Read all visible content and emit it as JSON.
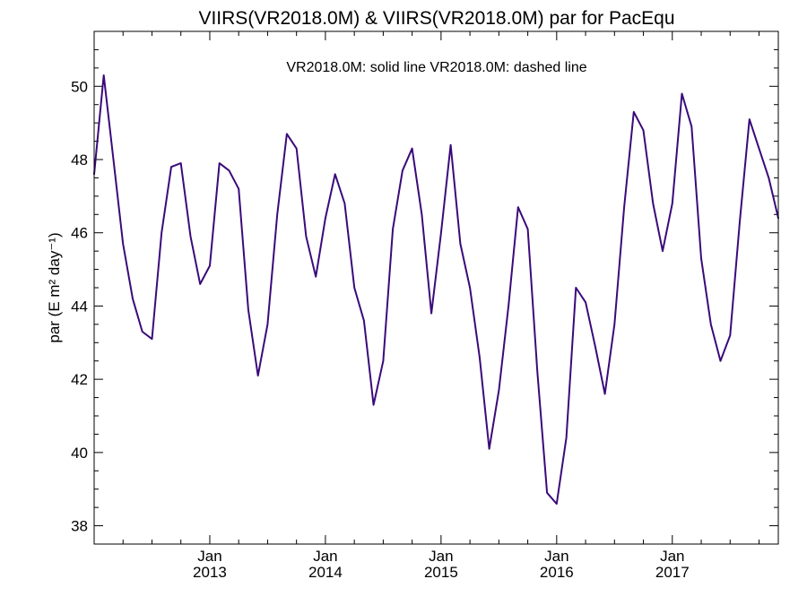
{
  "chart_data": {
    "type": "line",
    "title": "VIIRS(VR2018.0M) & VIIRS(VR2018.0M)  par for PacEqu",
    "annotation": "VR2018.0M: solid line   VR2018.0M: dashed line",
    "ylabel": "par (E m² day⁻¹)",
    "xlabel": "",
    "xlim": [
      "2012-01",
      "2017-12"
    ],
    "ylim": [
      37.5,
      51.5
    ],
    "y_ticks": [
      38,
      40,
      42,
      44,
      46,
      48,
      50
    ],
    "x_ticks": [
      {
        "x": "2013-01",
        "month": "Jan",
        "year": "2013"
      },
      {
        "x": "2014-01",
        "month": "Jan",
        "year": "2014"
      },
      {
        "x": "2015-01",
        "month": "Jan",
        "year": "2015"
      },
      {
        "x": "2016-01",
        "month": "Jan",
        "year": "2016"
      },
      {
        "x": "2017-01",
        "month": "Jan",
        "year": "2017"
      }
    ],
    "grid": false,
    "color": "#3a0a7a",
    "series": [
      {
        "name": "VR2018.0M",
        "style": "solid",
        "x": [
          "2012-01",
          "2012-02",
          "2012-03",
          "2012-04",
          "2012-05",
          "2012-06",
          "2012-07",
          "2012-08",
          "2012-09",
          "2012-10",
          "2012-11",
          "2012-12",
          "2013-01",
          "2013-02",
          "2013-03",
          "2013-04",
          "2013-05",
          "2013-06",
          "2013-07",
          "2013-08",
          "2013-09",
          "2013-10",
          "2013-11",
          "2013-12",
          "2014-01",
          "2014-02",
          "2014-03",
          "2014-04",
          "2014-05",
          "2014-06",
          "2014-07",
          "2014-08",
          "2014-09",
          "2014-10",
          "2014-11",
          "2014-12",
          "2015-01",
          "2015-02",
          "2015-03",
          "2015-04",
          "2015-05",
          "2015-06",
          "2015-07",
          "2015-08",
          "2015-09",
          "2015-10",
          "2015-11",
          "2015-12",
          "2016-01",
          "2016-02",
          "2016-03",
          "2016-04",
          "2016-05",
          "2016-06",
          "2016-07",
          "2016-08",
          "2016-09",
          "2016-10",
          "2016-11",
          "2016-12",
          "2017-01",
          "2017-02",
          "2017-03",
          "2017-04",
          "2017-05",
          "2017-06",
          "2017-07",
          "2017-08",
          "2017-09",
          "2017-10",
          "2017-11",
          "2017-12"
        ],
        "values": [
          47.6,
          50.3,
          48.0,
          45.7,
          44.2,
          43.3,
          43.1,
          46.0,
          47.8,
          47.9,
          45.9,
          44.6,
          45.1,
          47.9,
          47.7,
          47.2,
          43.9,
          42.1,
          43.5,
          46.5,
          48.7,
          48.3,
          45.9,
          44.8,
          46.4,
          47.6,
          46.8,
          44.5,
          43.6,
          41.3,
          42.5,
          46.1,
          47.7,
          48.3,
          46.5,
          43.8,
          46.0,
          48.4,
          45.7,
          44.5,
          42.6,
          40.1,
          41.7,
          44.0,
          46.7,
          46.1,
          42.2,
          38.9,
          38.6,
          40.4,
          44.5,
          44.1,
          42.9,
          41.6,
          43.5,
          46.7,
          49.3,
          48.8,
          46.8,
          45.5,
          46.8,
          49.8,
          48.9,
          45.3,
          43.5,
          42.5,
          43.2,
          46.3,
          49.1,
          48.3,
          47.5,
          46.4
        ]
      }
    ]
  }
}
